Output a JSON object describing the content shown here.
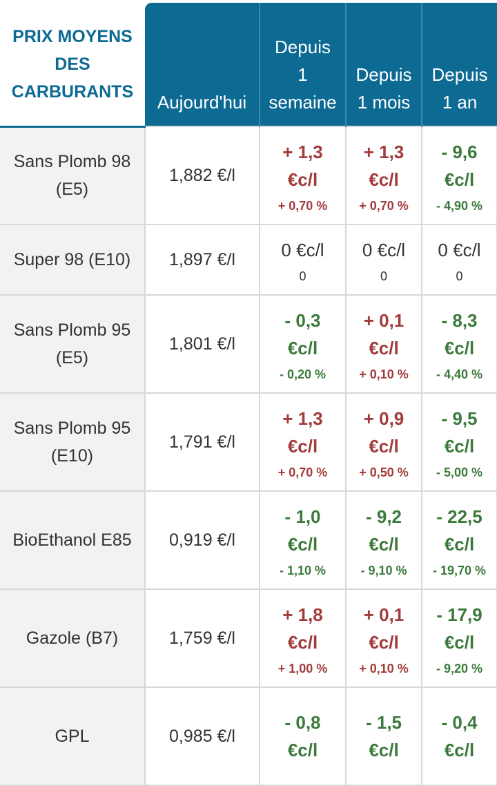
{
  "header": {
    "title": [
      "PRIX MOYENS",
      "DES",
      "CARBURANTS"
    ],
    "columns": [
      [
        "Aujourd'hui"
      ],
      [
        "Depuis",
        "1",
        "semaine"
      ],
      [
        "Depuis",
        "1 mois"
      ],
      [
        "Depuis",
        "1 an"
      ]
    ]
  },
  "table": {
    "rows": [
      {
        "fuel": "Sans Plomb 98 (E5)",
        "price": "1,882 €/l",
        "changes": [
          {
            "value": [
              "+ 1,3",
              "€c/l"
            ],
            "percent": "+ 0,70 %"
          },
          {
            "value": [
              "+ 1,3",
              "€c/l"
            ],
            "percent": "+ 0,70 %"
          },
          {
            "value": [
              "- 9,6",
              "€c/l"
            ],
            "percent": "- 4,90 %"
          }
        ]
      },
      {
        "fuel": "Super 98 (E10)",
        "price": "1,897 €/l",
        "changes": [
          {
            "value": [
              "0 €c/l"
            ],
            "percent": "0"
          },
          {
            "value": [
              "0 €c/l"
            ],
            "percent": "0"
          },
          {
            "value": [
              "0 €c/l"
            ],
            "percent": "0"
          }
        ]
      },
      {
        "fuel": "Sans Plomb 95 (E5)",
        "price": "1,801 €/l",
        "changes": [
          {
            "value": [
              "- 0,3",
              "€c/l"
            ],
            "percent": "- 0,20 %"
          },
          {
            "value": [
              "+ 0,1",
              "€c/l"
            ],
            "percent": "+ 0,10 %"
          },
          {
            "value": [
              "- 8,3",
              "€c/l"
            ],
            "percent": "- 4,40 %"
          }
        ]
      },
      {
        "fuel": "Sans Plomb 95 (E10)",
        "price": "1,791 €/l",
        "changes": [
          {
            "value": [
              "+ 1,3",
              "€c/l"
            ],
            "percent": "+ 0,70 %"
          },
          {
            "value": [
              "+ 0,9",
              "€c/l"
            ],
            "percent": "+ 0,50 %"
          },
          {
            "value": [
              "- 9,5",
              "€c/l"
            ],
            "percent": "- 5,00 %"
          }
        ]
      },
      {
        "fuel": "BioEthanol E85",
        "price": "0,919 €/l",
        "changes": [
          {
            "value": [
              "- 1,0",
              "€c/l"
            ],
            "percent": "- 1,10 %"
          },
          {
            "value": [
              "- 9,2",
              "€c/l"
            ],
            "percent": "- 9,10 %"
          },
          {
            "value": [
              "- 22,5",
              "€c/l"
            ],
            "percent": "- 19,70 %"
          }
        ]
      },
      {
        "fuel": "Gazole (B7)",
        "price": "1,759 €/l",
        "changes": [
          {
            "value": [
              "+ 1,8",
              "€c/l"
            ],
            "percent": "+ 1,00 %"
          },
          {
            "value": [
              "+ 0,1",
              "€c/l"
            ],
            "percent": "+ 0,10 %"
          },
          {
            "value": [
              "- 17,9",
              "€c/l"
            ],
            "percent": "- 9,20 %"
          }
        ]
      },
      {
        "fuel": "GPL",
        "price": "0,985 €/l",
        "changes": [
          {
            "value": [
              "- 0,8",
              "€c/l"
            ],
            "percent": ""
          },
          {
            "value": [
              "- 1,5",
              "€c/l"
            ],
            "percent": ""
          },
          {
            "value": [
              "- 0,4",
              "€c/l"
            ],
            "percent": ""
          }
        ]
      }
    ]
  }
}
